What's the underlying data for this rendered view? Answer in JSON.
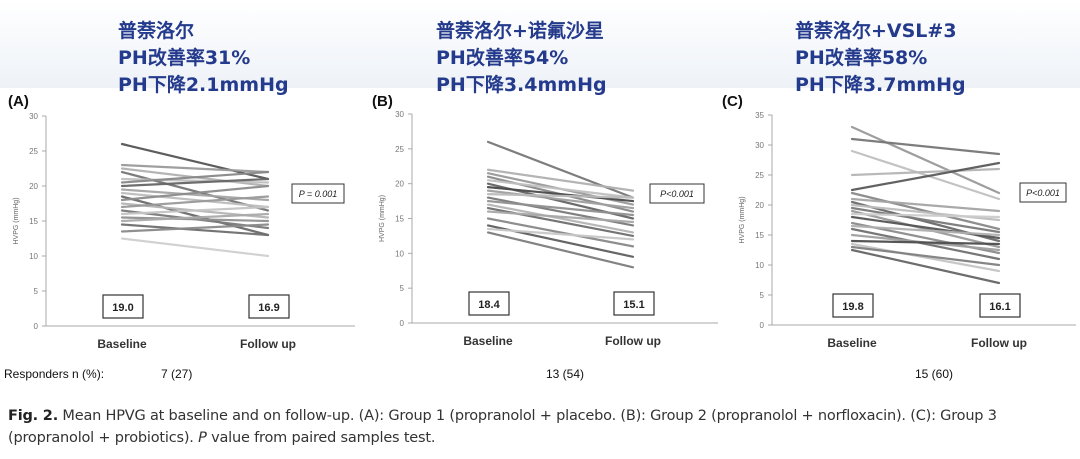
{
  "panels": [
    {
      "label": "(A)",
      "chinese": [
        "普萘洛尔",
        "PH改善率31%",
        "PH下降2.1mmHg"
      ],
      "responders": "7 (27)",
      "chart_data": {
        "type": "line",
        "ylabel": "HVPG (mmHg)",
        "ylim": [
          0,
          30
        ],
        "yticks": [
          0,
          5,
          10,
          15,
          20,
          25,
          30
        ],
        "categories": [
          "Baseline",
          "Follow up"
        ],
        "pvalue": "P = 0.001",
        "mean_baseline": "19.0",
        "mean_followup": "16.9",
        "series": [
          {
            "values": [
              26,
              21
            ],
            "color": "#555555"
          },
          {
            "values": [
              23,
              22
            ],
            "color": "#9a9a9a"
          },
          {
            "values": [
              22.5,
              20
            ],
            "color": "#b0b0b0"
          },
          {
            "values": [
              22,
              16.5
            ],
            "color": "#777777"
          },
          {
            "values": [
              21,
              20.5
            ],
            "color": "#c0c0c0"
          },
          {
            "values": [
              20.5,
              22
            ],
            "color": "#888888"
          },
          {
            "values": [
              20,
              21
            ],
            "color": "#666666"
          },
          {
            "values": [
              19.5,
              18
            ],
            "color": "#a5a5a5"
          },
          {
            "values": [
              19,
              17
            ],
            "color": "#bdbdbd"
          },
          {
            "values": [
              18.5,
              13
            ],
            "color": "#6a6a6a"
          },
          {
            "values": [
              18,
              20
            ],
            "color": "#8c8c8c"
          },
          {
            "values": [
              17.5,
              15.5
            ],
            "color": "#b5b5b5"
          },
          {
            "values": [
              17,
              18.5
            ],
            "color": "#999999"
          },
          {
            "values": [
              16.5,
              14
            ],
            "color": "#7a7a7a"
          },
          {
            "values": [
              16,
              17
            ],
            "color": "#c5c5c5"
          },
          {
            "values": [
              15.5,
              15
            ],
            "color": "#909090"
          },
          {
            "values": [
              15,
              16
            ],
            "color": "#aaaaaa"
          },
          {
            "values": [
              14.5,
              13
            ],
            "color": "#6e6e6e"
          },
          {
            "values": [
              13.5,
              14.5
            ],
            "color": "#8a8a8a"
          },
          {
            "values": [
              12.5,
              10
            ],
            "color": "#cfcfcf"
          }
        ]
      }
    },
    {
      "label": "(B)",
      "chinese": [
        "普萘洛尔+诺氟沙星",
        "PH改善率54%",
        "PH下降3.4mmHg"
      ],
      "responders": "13 (54)",
      "chart_data": {
        "type": "line",
        "ylabel": "HVPG (mmHg)",
        "ylim": [
          0,
          30
        ],
        "yticks": [
          0,
          5,
          10,
          15,
          20,
          25,
          30
        ],
        "categories": [
          "Baseline",
          "Follow up"
        ],
        "pvalue": "P<0.001",
        "mean_baseline": "18.4",
        "mean_followup": "15.1",
        "series": [
          {
            "values": [
              26,
              18
            ],
            "color": "#777777"
          },
          {
            "values": [
              22,
              19
            ],
            "color": "#b0b0b0"
          },
          {
            "values": [
              21.5,
              17
            ],
            "color": "#999999"
          },
          {
            "values": [
              21,
              16
            ],
            "color": "#8a8a8a"
          },
          {
            "values": [
              20.5,
              18
            ],
            "color": "#c0c0c0"
          },
          {
            "values": [
              20,
              15
            ],
            "color": "#666666"
          },
          {
            "values": [
              19.5,
              17.5
            ],
            "color": "#4a4a4a"
          },
          {
            "values": [
              19,
              16.5
            ],
            "color": "#a0a0a0"
          },
          {
            "values": [
              18.5,
              18
            ],
            "color": "#bbbbbb"
          },
          {
            "values": [
              18,
              14
            ],
            "color": "#7a7a7a"
          },
          {
            "values": [
              17.5,
              15.5
            ],
            "color": "#909090"
          },
          {
            "values": [
              17,
              13
            ],
            "color": "#b5b5b5"
          },
          {
            "values": [
              16.5,
              12.5
            ],
            "color": "#6e6e6e"
          },
          {
            "values": [
              16,
              14.5
            ],
            "color": "#a8a8a8"
          },
          {
            "values": [
              15,
              11
            ],
            "color": "#888888"
          },
          {
            "values": [
              14,
              9.5
            ],
            "color": "#5e5e5e"
          },
          {
            "values": [
              13.5,
              12
            ],
            "color": "#c8c8c8"
          },
          {
            "values": [
              13,
              8
            ],
            "color": "#7d7d7d"
          }
        ]
      }
    },
    {
      "label": "(C)",
      "chinese": [
        "普萘洛尔+VSL#3",
        "PH改善率58%",
        "PH下降3.7mmHg"
      ],
      "responders": "15 (60)",
      "chart_data": {
        "type": "line",
        "ylabel": "HVPG (mmHg)",
        "ylim": [
          0,
          35
        ],
        "yticks": [
          0,
          5,
          10,
          15,
          20,
          25,
          30,
          35
        ],
        "categories": [
          "Baseline",
          "Follow up"
        ],
        "pvalue": "P<0.001",
        "mean_baseline": "19.8",
        "mean_followup": "16.1",
        "series": [
          {
            "values": [
              33,
              22
            ],
            "color": "#999999"
          },
          {
            "values": [
              31,
              28.5
            ],
            "color": "#777777"
          },
          {
            "values": [
              29,
              21
            ],
            "color": "#c0c0c0"
          },
          {
            "values": [
              25,
              26
            ],
            "color": "#b5b5b5"
          },
          {
            "values": [
              22.5,
              27
            ],
            "color": "#5a5a5a"
          },
          {
            "values": [
              22,
              16
            ],
            "color": "#888888"
          },
          {
            "values": [
              21,
              19
            ],
            "color": "#a5a5a5"
          },
          {
            "values": [
              20.5,
              14
            ],
            "color": "#6a6a6a"
          },
          {
            "values": [
              20,
              17.5
            ],
            "color": "#bdbdbd"
          },
          {
            "values": [
              19.5,
              15.5
            ],
            "color": "#7a7a7a"
          },
          {
            "values": [
              19,
              13
            ],
            "color": "#9a9a9a"
          },
          {
            "values": [
              18.5,
              18
            ],
            "color": "#cccccc"
          },
          {
            "values": [
              18,
              14.5
            ],
            "color": "#555555"
          },
          {
            "values": [
              17,
              12
            ],
            "color": "#8c8c8c"
          },
          {
            "values": [
              16.5,
              15
            ],
            "color": "#b0b0b0"
          },
          {
            "values": [
              16,
              11
            ],
            "color": "#707070"
          },
          {
            "values": [
              15,
              12.5
            ],
            "color": "#a0a0a0"
          },
          {
            "values": [
              14,
              13.5
            ],
            "color": "#4e4e4e"
          },
          {
            "values": [
              13.5,
              9
            ],
            "color": "#c5c5c5"
          },
          {
            "values": [
              13,
              10
            ],
            "color": "#808080"
          },
          {
            "values": [
              12.5,
              7
            ],
            "color": "#666666"
          }
        ]
      }
    }
  ],
  "responders_label": "Responders n (%):",
  "caption": {
    "fig_label": "Fig. 2.",
    "text1": " Mean HPVG at baseline and on follow-up. (A): Group 1 (propranolol + placebo. (B): Group 2 (propranolol + norfloxacin). (C): Group 3 (propranolol + probiotics). ",
    "pitalic": "P",
    "text2": " value from paired samples test."
  }
}
